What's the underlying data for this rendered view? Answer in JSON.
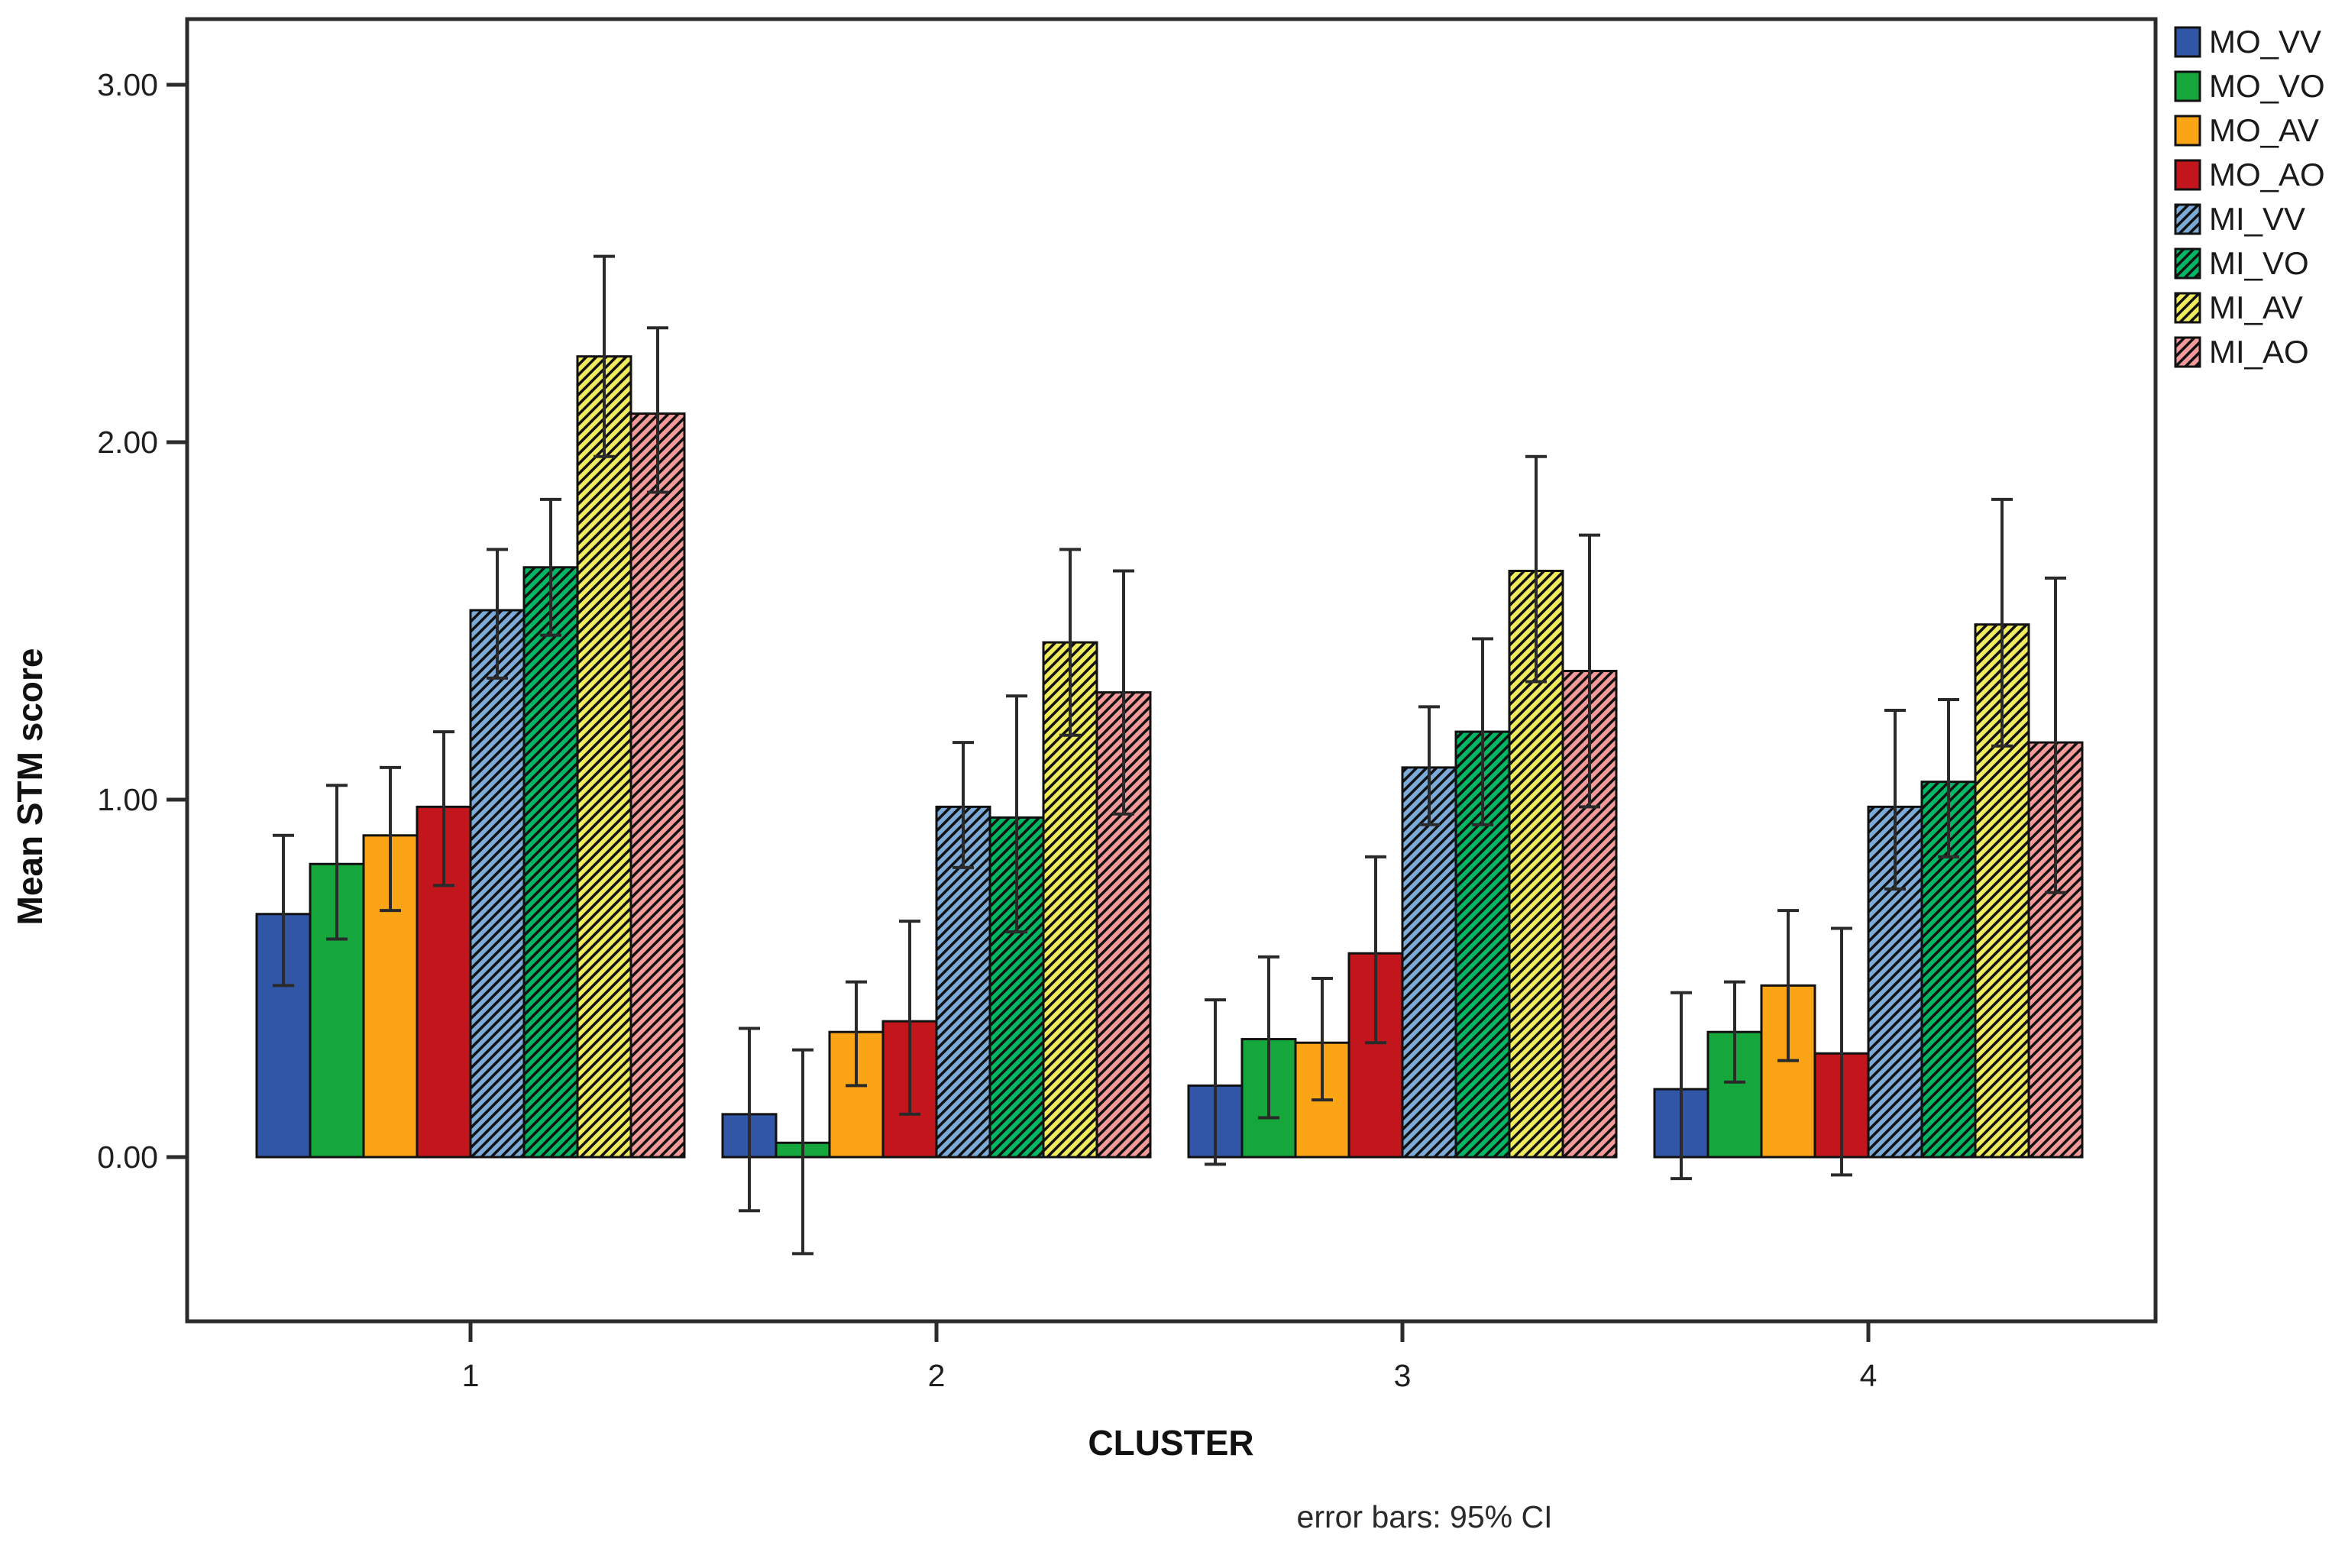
{
  "chart_data": {
    "type": "bar",
    "title": "",
    "xlabel": "CLUSTER",
    "ylabel": "Mean STM score",
    "caption": "error bars: 95% CI",
    "categories": [
      "1",
      "2",
      "3",
      "4"
    ],
    "ytick_labels": [
      "0.00",
      "1.00",
      "2.00",
      "3.00"
    ],
    "ytick_values": [
      0,
      1,
      2,
      3
    ],
    "ylim": [
      -0.45,
      3.2
    ],
    "grid": false,
    "legend_position": "outside-top-right",
    "error_bar_type": "95% CI",
    "series": [
      {
        "name": "MO_VV",
        "color": "#3156a8",
        "hatch": false,
        "values": [
          0.68,
          0.12,
          0.2,
          0.19
        ],
        "ci_low": [
          0.48,
          -0.15,
          -0.02,
          -0.06
        ],
        "ci_high": [
          0.9,
          0.36,
          0.44,
          0.46
        ]
      },
      {
        "name": "MO_VO",
        "color": "#16a73c",
        "hatch": false,
        "values": [
          0.82,
          0.04,
          0.33,
          0.35
        ],
        "ci_low": [
          0.61,
          -0.27,
          0.11,
          0.21
        ],
        "ci_high": [
          1.04,
          0.3,
          0.56,
          0.49
        ]
      },
      {
        "name": "MO_AV",
        "color": "#fba416",
        "hatch": false,
        "values": [
          0.9,
          0.35,
          0.32,
          0.48
        ],
        "ci_low": [
          0.69,
          0.2,
          0.16,
          0.27
        ],
        "ci_high": [
          1.09,
          0.49,
          0.5,
          0.69
        ]
      },
      {
        "name": "MO_AO",
        "color": "#c2151c",
        "hatch": false,
        "values": [
          0.98,
          0.38,
          0.57,
          0.29
        ],
        "ci_low": [
          0.76,
          0.12,
          0.32,
          -0.05
        ],
        "ci_high": [
          1.19,
          0.66,
          0.84,
          0.64
        ]
      },
      {
        "name": "MI_VV",
        "color": "#7cabd9",
        "hatch": true,
        "values": [
          1.53,
          0.98,
          1.09,
          0.98
        ],
        "ci_low": [
          1.34,
          0.81,
          0.93,
          0.75
        ],
        "ci_high": [
          1.7,
          1.16,
          1.26,
          1.25
        ]
      },
      {
        "name": "MI_VO",
        "color": "#00b864",
        "hatch": true,
        "values": [
          1.65,
          0.95,
          1.19,
          1.05
        ],
        "ci_low": [
          1.46,
          0.63,
          0.93,
          0.84
        ],
        "ci_high": [
          1.84,
          1.29,
          1.45,
          1.28
        ]
      },
      {
        "name": "MI_AV",
        "color": "#f0ec5d",
        "hatch": true,
        "values": [
          2.24,
          1.44,
          1.64,
          1.49
        ],
        "ci_low": [
          1.96,
          1.18,
          1.33,
          1.15
        ],
        "ci_high": [
          2.52,
          1.7,
          1.96,
          1.84
        ]
      },
      {
        "name": "MI_AO",
        "color": "#f59a9b",
        "hatch": true,
        "values": [
          2.08,
          1.3,
          1.36,
          1.16
        ],
        "ci_low": [
          1.86,
          0.96,
          0.98,
          0.74
        ],
        "ci_high": [
          2.32,
          1.64,
          1.74,
          1.62
        ]
      }
    ]
  }
}
